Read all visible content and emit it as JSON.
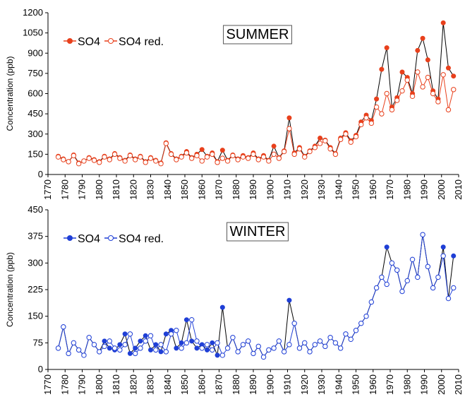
{
  "chart_data": [
    {
      "type": "line",
      "title": "SUMMER",
      "ylabel": "Concentration (ppb)",
      "legend": "upper left",
      "xlim": [
        1770,
        2010
      ],
      "xticks": [
        1770,
        1780,
        1790,
        1800,
        1810,
        1820,
        1830,
        1840,
        1850,
        1860,
        1870,
        1880,
        1890,
        1900,
        1910,
        1920,
        1930,
        1940,
        1950,
        1960,
        1970,
        1980,
        1990,
        2000,
        2010
      ],
      "ylim": [
        0,
        1200
      ],
      "yticks": [
        0,
        150,
        300,
        450,
        600,
        750,
        900,
        1050,
        1200
      ],
      "x": [
        1776,
        1779,
        1782,
        1785,
        1788,
        1791,
        1794,
        1797,
        1800,
        1803,
        1806,
        1809,
        1812,
        1815,
        1818,
        1821,
        1824,
        1827,
        1830,
        1833,
        1836,
        1839,
        1842,
        1845,
        1848,
        1851,
        1854,
        1857,
        1860,
        1863,
        1866,
        1869,
        1872,
        1875,
        1878,
        1881,
        1884,
        1887,
        1890,
        1893,
        1896,
        1899,
        1902,
        1905,
        1908,
        1911,
        1914,
        1917,
        1920,
        1923,
        1926,
        1929,
        1932,
        1935,
        1938,
        1941,
        1944,
        1947,
        1950,
        1953,
        1956,
        1959,
        1962,
        1965,
        1968,
        1971,
        1974,
        1977,
        1980,
        1983,
        1986,
        1989,
        1992,
        1995,
        1998,
        2001,
        2004,
        2007
      ],
      "series": [
        {
          "name": "SO4",
          "color": "#e8401c",
          "line_color": "#000000",
          "filled": true,
          "values": [
            135,
            115,
            95,
            145,
            85,
            100,
            125,
            110,
            95,
            135,
            115,
            155,
            125,
            105,
            145,
            115,
            135,
            95,
            125,
            105,
            85,
            235,
            155,
            115,
            135,
            170,
            125,
            150,
            185,
            135,
            160,
            95,
            180,
            105,
            145,
            115,
            140,
            125,
            160,
            115,
            140,
            105,
            210,
            125,
            175,
            420,
            160,
            200,
            135,
            175,
            210,
            270,
            255,
            200,
            155,
            270,
            310,
            250,
            290,
            390,
            440,
            400,
            560,
            780,
            940,
            500,
            570,
            760,
            720,
            600,
            920,
            1010,
            850,
            620,
            560,
            1125,
            790,
            730
          ]
        },
        {
          "name": "SO4 red.",
          "color": "#e8401c",
          "line_color": "#e8401c",
          "filled": false,
          "values": [
            130,
            110,
            95,
            140,
            80,
            100,
            120,
            105,
            90,
            130,
            110,
            150,
            120,
            100,
            140,
            110,
            130,
            90,
            120,
            100,
            80,
            230,
            150,
            110,
            130,
            160,
            120,
            140,
            100,
            130,
            150,
            90,
            120,
            100,
            140,
            110,
            130,
            120,
            150,
            110,
            130,
            100,
            150,
            120,
            170,
            340,
            150,
            190,
            130,
            170,
            200,
            230,
            250,
            190,
            150,
            260,
            300,
            240,
            280,
            370,
            420,
            380,
            500,
            450,
            600,
            480,
            550,
            620,
            700,
            580,
            760,
            650,
            720,
            600,
            540,
            740,
            480,
            630
          ]
        }
      ]
    },
    {
      "type": "line",
      "title": "WINTER",
      "ylabel": "Concentration (ppb)",
      "legend": "upper left",
      "xlim": [
        1770,
        2010
      ],
      "xticks": [
        1770,
        1780,
        1790,
        1800,
        1810,
        1820,
        1830,
        1840,
        1850,
        1860,
        1870,
        1880,
        1890,
        1900,
        1910,
        1920,
        1930,
        1940,
        1950,
        1960,
        1970,
        1980,
        1990,
        2000,
        2010
      ],
      "ylim": [
        0,
        450
      ],
      "yticks": [
        0,
        75,
        150,
        225,
        300,
        375,
        450
      ],
      "x": [
        1776,
        1779,
        1782,
        1785,
        1788,
        1791,
        1794,
        1797,
        1800,
        1803,
        1806,
        1809,
        1812,
        1815,
        1818,
        1821,
        1824,
        1827,
        1830,
        1833,
        1836,
        1839,
        1842,
        1845,
        1848,
        1851,
        1854,
        1857,
        1860,
        1863,
        1866,
        1869,
        1872,
        1875,
        1878,
        1881,
        1884,
        1887,
        1890,
        1893,
        1896,
        1899,
        1902,
        1905,
        1908,
        1911,
        1914,
        1917,
        1920,
        1923,
        1926,
        1929,
        1932,
        1935,
        1938,
        1941,
        1944,
        1947,
        1950,
        1953,
        1956,
        1959,
        1962,
        1965,
        1968,
        1971,
        1974,
        1977,
        1980,
        1983,
        1986,
        1989,
        1992,
        1995,
        1998,
        2001,
        2004,
        2007
      ],
      "series": [
        {
          "name": "SO4",
          "color": "#1f3fd6",
          "line_color": "#000000",
          "filled": true,
          "values": [
            60,
            120,
            45,
            75,
            55,
            40,
            90,
            70,
            50,
            80,
            60,
            55,
            70,
            100,
            45,
            60,
            80,
            95,
            55,
            70,
            50,
            100,
            110,
            60,
            75,
            140,
            80,
            60,
            70,
            55,
            75,
            40,
            175,
            60,
            90,
            50,
            70,
            80,
            45,
            65,
            35,
            55,
            60,
            80,
            50,
            195,
            130,
            60,
            75,
            50,
            70,
            80,
            65,
            90,
            75,
            60,
            100,
            85,
            110,
            130,
            150,
            190,
            230,
            260,
            345,
            300,
            280,
            220,
            250,
            310,
            260,
            380,
            290,
            230,
            260,
            345,
            200,
            320
          ]
        },
        {
          "name": "SO4 red.",
          "color": "#1f3fd6",
          "line_color": "#1f3fd6",
          "filled": false,
          "values": [
            60,
            120,
            45,
            75,
            55,
            40,
            90,
            70,
            50,
            65,
            80,
            60,
            55,
            70,
            100,
            45,
            60,
            80,
            95,
            55,
            70,
            50,
            100,
            110,
            60,
            75,
            140,
            80,
            60,
            70,
            55,
            75,
            40,
            60,
            90,
            50,
            70,
            80,
            45,
            65,
            35,
            55,
            60,
            80,
            50,
            70,
            130,
            60,
            75,
            50,
            70,
            80,
            65,
            90,
            75,
            60,
            100,
            85,
            110,
            130,
            150,
            190,
            230,
            260,
            240,
            300,
            280,
            220,
            250,
            310,
            260,
            380,
            290,
            230,
            260,
            320,
            200,
            230
          ]
        }
      ]
    }
  ]
}
